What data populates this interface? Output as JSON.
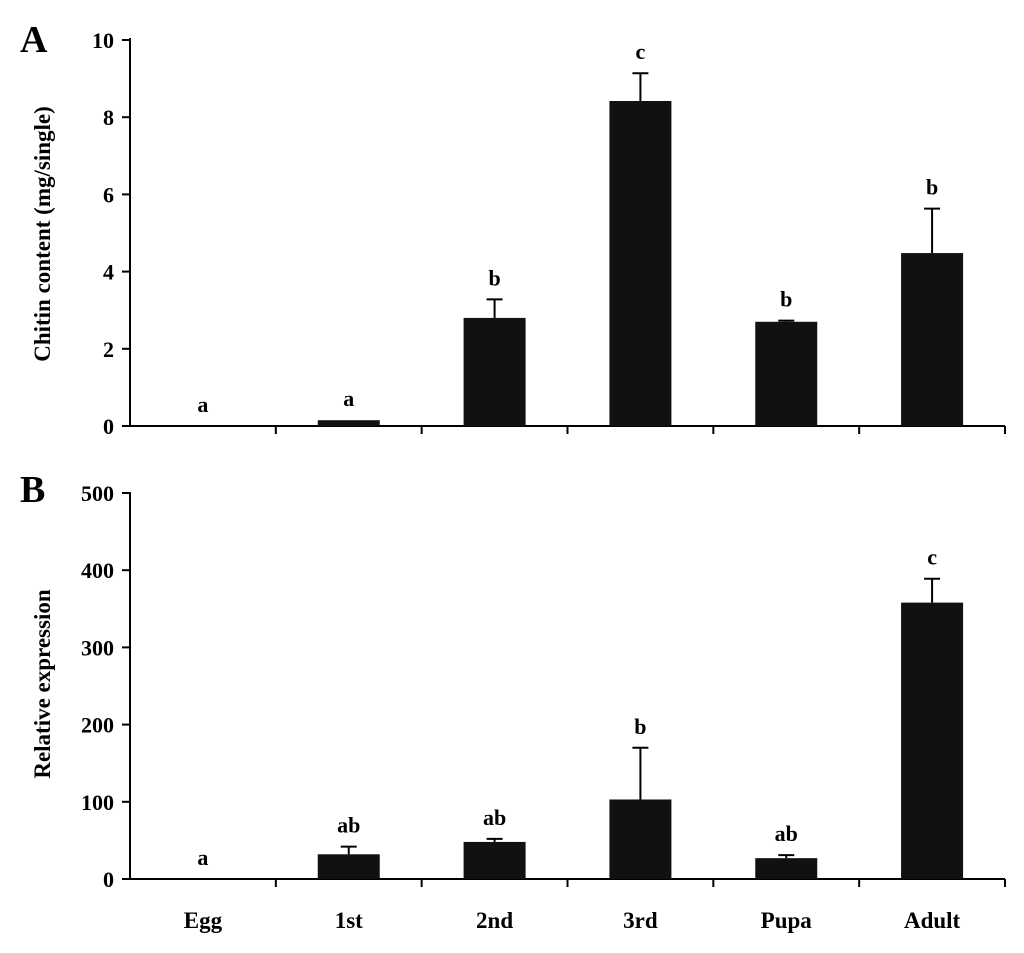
{
  "figure": {
    "categories": [
      "Egg",
      "1st",
      "2nd",
      "3rd",
      "Pupa",
      "Adult"
    ]
  },
  "chart_data": [
    {
      "type": "bar",
      "panel": "A",
      "categories": [
        "Egg",
        "1st",
        "2nd",
        "3rd",
        "Pupa",
        "Adult"
      ],
      "values": [
        0,
        0.15,
        2.8,
        8.42,
        2.7,
        4.48
      ],
      "errors": [
        0,
        0,
        0.48,
        0.72,
        0.03,
        1.15
      ],
      "significance": [
        "a",
        "a",
        "b",
        "c",
        "b",
        "b"
      ],
      "title": "",
      "xlabel": "",
      "ylabel": "Chitin content (mg/single)",
      "ylim": [
        0,
        10
      ],
      "yticks": [
        0,
        2,
        4,
        6,
        8,
        10
      ],
      "ytick_labels": [
        "0",
        "2",
        "4",
        "6",
        "8",
        "10"
      ],
      "bar_color": "#111111"
    },
    {
      "type": "bar",
      "panel": "B",
      "categories": [
        "Egg",
        "1st",
        "2nd",
        "3rd",
        "Pupa",
        "Adult"
      ],
      "values": [
        0,
        32,
        48,
        103,
        27,
        358
      ],
      "errors": [
        0,
        10,
        4,
        67,
        4,
        31
      ],
      "significance": [
        "a",
        "ab",
        "ab",
        "b",
        "ab",
        "c"
      ],
      "title": "",
      "xlabel": "",
      "ylabel": "Relative expression",
      "ylim": [
        0,
        500
      ],
      "yticks": [
        0,
        100,
        200,
        300,
        400,
        500
      ],
      "ytick_labels": [
        "0",
        "100",
        "200",
        "300",
        "400",
        "500"
      ],
      "bar_color": "#111111"
    }
  ]
}
